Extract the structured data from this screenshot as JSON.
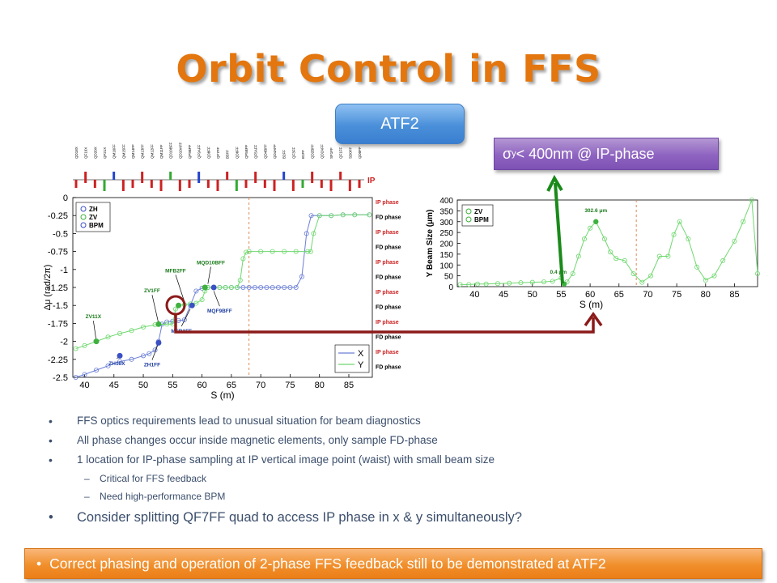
{
  "slide": {
    "title": "Orbit Control in FFS",
    "atf2_button": "ATF2",
    "sigma_box": {
      "prefix": "σ",
      "sub": "y",
      "suffix": " < 400nm @ IP-phase"
    },
    "bullets": [
      "FFS optics requirements lead to unusual situation for beam diagnostics",
      "All phase changes occur inside magnetic elements, only sample FD-phase",
      "1 location for IP-phase sampling at IP vertical image point (waist) with small beam size"
    ],
    "sub_bullets": [
      "Critical for FFS feedback",
      "Need high-performance BPM"
    ],
    "bullet_large": "Consider splitting QF7FF quad to access IP phase in x & y simultaneously?",
    "footer": "Correct phasing and operation of 2-phase FFS feedback still to be demonstrated at ATF2",
    "colors": {
      "title": "#e3760e",
      "text": "#3b4e6b",
      "atf2": "#4a8fd9",
      "sigma": "#8e63c0",
      "footer": "#f08f2c",
      "arrow_dark_red": "#8b1a1a",
      "arrow_green": "#1a8a1a"
    }
  },
  "chart_data": [
    {
      "type": "line",
      "ylabel": "Δμ (rad/2π)",
      "xlabel": "S (m)",
      "xlim": [
        38,
        89
      ],
      "ylim": [
        -2.5,
        0
      ],
      "xticks": [
        40,
        45,
        50,
        55,
        60,
        65,
        70,
        75,
        80,
        85
      ],
      "yticks": [
        0,
        -0.25,
        -0.5,
        -0.75,
        -1,
        -1.25,
        -1.5,
        -1.75,
        -2,
        -2.25,
        -2.5
      ],
      "ytick_labels": [
        "0",
        "-0.25",
        "-0.5",
        "-0.75",
        "-1",
        "-1.25",
        "-1.5",
        "-1.75",
        "-2",
        "-2.25",
        "-2.5"
      ],
      "phase_labels": [
        "IP phase",
        "FD phase",
        "IP phase",
        "FD phase",
        "IP phase",
        "FD phase",
        "IP phase",
        "FD phase",
        "IP phase",
        "FD phase",
        "IP phase",
        "FD phase"
      ],
      "legend_top": [
        "ZH",
        "ZV",
        "BPM"
      ],
      "series": [
        {
          "name": "X",
          "color": "#6b7fd6",
          "x": [
            38.5,
            40,
            42,
            44,
            46,
            48,
            50,
            51,
            52,
            52.6,
            53.2,
            54,
            55,
            56,
            57,
            58,
            59,
            60,
            61,
            62,
            63,
            64,
            65,
            66,
            67,
            68,
            69,
            70,
            71,
            72,
            73,
            74,
            75,
            76,
            77,
            77.8,
            78.6,
            80,
            82,
            84,
            86,
            88.5
          ],
          "y": [
            -2.5,
            -2.46,
            -2.4,
            -2.34,
            -2.28,
            -2.25,
            -2.2,
            -2.17,
            -2.12,
            -2.0,
            -1.76,
            -1.73,
            -1.72,
            -1.71,
            -1.7,
            -1.5,
            -1.3,
            -1.26,
            -1.25,
            -1.25,
            -1.25,
            -1.25,
            -1.25,
            -1.25,
            -1.25,
            -1.25,
            -1.25,
            -1.25,
            -1.25,
            -1.25,
            -1.25,
            -1.25,
            -1.25,
            -1.25,
            -1.1,
            -0.5,
            -0.25,
            -0.25,
            -0.25,
            -0.24,
            -0.24,
            -0.24
          ]
        },
        {
          "name": "Y",
          "color": "#6fd86f",
          "x": [
            38.5,
            40,
            42,
            44,
            46,
            48,
            50,
            52,
            54,
            55,
            55.5,
            56,
            57,
            58,
            59,
            60,
            60.5,
            61,
            62,
            63,
            64,
            65,
            66,
            66.5,
            67,
            67.5,
            68,
            70,
            72,
            74,
            76,
            78,
            78.5,
            79,
            80,
            82,
            84,
            86,
            88.5
          ],
          "y": [
            -2.1,
            -2.06,
            -2.0,
            -1.94,
            -1.89,
            -1.85,
            -1.8,
            -1.77,
            -1.76,
            -1.76,
            -1.55,
            -1.5,
            -1.49,
            -1.48,
            -1.47,
            -1.42,
            -1.3,
            -1.25,
            -1.25,
            -1.25,
            -1.25,
            -1.25,
            -1.25,
            -1.15,
            -0.85,
            -0.76,
            -0.75,
            -0.75,
            -0.75,
            -0.75,
            -0.75,
            -0.75,
            -0.75,
            -0.5,
            -0.25,
            -0.25,
            -0.24,
            -0.24,
            -0.24
          ]
        }
      ],
      "annotations": [
        "ZV11X",
        "ZH10X",
        "ZV1FF",
        "ZH1FF",
        "MFB2FF",
        "MFB1FF",
        "MQD10BFF",
        "MQF9BFF"
      ],
      "lattice_labels": [
        "QD18X",
        "QF19X",
        "QD20X",
        "QF21X",
        "QM16FF",
        "QM15FF",
        "QM14FF",
        "QM13FF",
        "QM12FF",
        "QM11FF",
        "QD10BFF",
        "QD10AFF",
        "QF9BFF",
        "QF9AFF",
        "QD8FF",
        "QF7FF",
        "B5FF",
        "QD6FF",
        "QF5BFF",
        "QF5AFF",
        "QD4BFF",
        "QD4AFF",
        "B2FF",
        "QF3FF",
        "B1FF",
        "QD2BFF",
        "QD2AFF",
        "SF1FF",
        "QF1FF",
        "SD0FF",
        "QD0FF"
      ],
      "lattice_ip_label": "IP"
    },
    {
      "type": "scatter",
      "ylabel": "Y Beam Size (μm)",
      "xlabel": "S (m)",
      "xlim": [
        37,
        89
      ],
      "ylim": [
        0,
        400
      ],
      "xticks": [
        40,
        45,
        50,
        55,
        60,
        65,
        70,
        75,
        80,
        85
      ],
      "yticks": [
        0,
        50,
        100,
        150,
        200,
        250,
        300,
        350,
        400
      ],
      "legend": [
        "ZV",
        "BPM"
      ],
      "series": [
        {
          "name": "BPM",
          "color": "#6fd86f",
          "x": [
            37.5,
            39,
            40.5,
            42,
            44,
            46,
            48,
            50,
            52,
            53.5,
            55,
            55.5,
            56,
            57,
            58,
            59,
            60,
            61,
            62.5,
            63.5,
            64.5,
            66,
            67.5,
            69,
            70.5,
            72,
            73.5,
            74.5,
            75.5,
            77,
            78.5,
            80,
            81.5,
            83,
            85,
            86.5,
            88,
            89
          ],
          "y": [
            10,
            10,
            12,
            12,
            14,
            16,
            18,
            20,
            22,
            25,
            40,
            12,
            22,
            60,
            140,
            220,
            270,
            300,
            220,
            160,
            130,
            120,
            60,
            20,
            50,
            140,
            140,
            240,
            300,
            220,
            90,
            30,
            50,
            120,
            210,
            300,
            400,
            60
          ]
        }
      ],
      "annotations": [
        "302.6 μm",
        "0.4 μm"
      ]
    }
  ]
}
